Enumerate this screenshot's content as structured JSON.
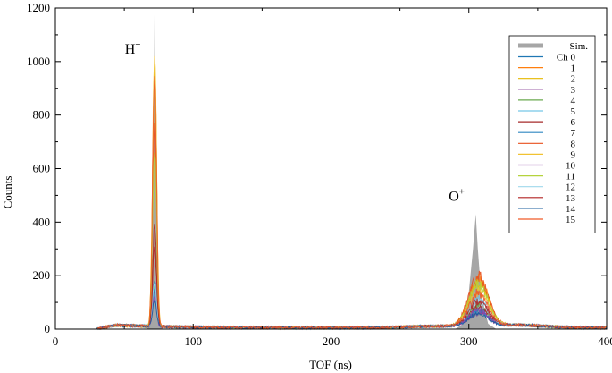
{
  "chart_data": {
    "type": "line",
    "xlabel": "TOF (ns)",
    "ylabel": "Counts",
    "xlim": [
      0,
      400
    ],
    "ylim": [
      0,
      1200
    ],
    "x_ticks": [
      "0",
      "100",
      "200",
      "300",
      "400"
    ],
    "y_ticks": [
      "0",
      "200",
      "400",
      "600",
      "800",
      "1000",
      "1200"
    ],
    "grid": false,
    "legend_position": "top-right",
    "annotations": [
      {
        "label": "H",
        "superscript": "+",
        "x": 71,
        "y": 1030
      },
      {
        "label": "O",
        "superscript": "+",
        "x": 306,
        "y": 480
      }
    ],
    "simulation": {
      "name": "Sim.",
      "color": "#a6a6a6",
      "points": [
        [
          28,
          0
        ],
        [
          60,
          0
        ],
        [
          66,
          0
        ],
        [
          69,
          40
        ],
        [
          70.5,
          300
        ],
        [
          71.5,
          900
        ],
        [
          72,
          1200
        ],
        [
          72.6,
          900
        ],
        [
          73.5,
          350
        ],
        [
          75,
          60
        ],
        [
          77,
          0
        ],
        [
          290,
          0
        ],
        [
          296,
          20
        ],
        [
          300,
          140
        ],
        [
          303,
          300
        ],
        [
          305,
          430
        ],
        [
          306.5,
          300
        ],
        [
          309,
          130
        ],
        [
          314,
          20
        ],
        [
          320,
          0
        ],
        [
          400,
          0
        ]
      ]
    },
    "series": [
      {
        "name": "Ch 0",
        "color": "#1f77b4",
        "h_peak": 170,
        "o_peak": 60
      },
      {
        "name": "1",
        "color": "#ff7f0e",
        "h_peak": 960,
        "o_peak": 175
      },
      {
        "name": "2",
        "color": "#e6b800",
        "h_peak": 980,
        "o_peak": 165
      },
      {
        "name": "3",
        "color": "#7b2d8e",
        "h_peak": 130,
        "o_peak": 50
      },
      {
        "name": "4",
        "color": "#6aa84f",
        "h_peak": 150,
        "o_peak": 75
      },
      {
        "name": "5",
        "color": "#76c7e8",
        "h_peak": 120,
        "o_peak": 100
      },
      {
        "name": "6",
        "color": "#a52a2a",
        "h_peak": 380,
        "o_peak": 70
      },
      {
        "name": "7",
        "color": "#2e86c1",
        "h_peak": 140,
        "o_peak": 55
      },
      {
        "name": "8",
        "color": "#e8501e",
        "h_peak": 760,
        "o_peak": 185
      },
      {
        "name": "9",
        "color": "#f1c232",
        "h_peak": 1010,
        "o_peak": 130
      },
      {
        "name": "10",
        "color": "#8e44ad",
        "h_peak": 110,
        "o_peak": 60
      },
      {
        "name": "11",
        "color": "#b5d33d",
        "h_peak": 650,
        "o_peak": 155
      },
      {
        "name": "12",
        "color": "#9fd8ec",
        "h_peak": 160,
        "o_peak": 90
      },
      {
        "name": "13",
        "color": "#b22222",
        "h_peak": 300,
        "o_peak": 95
      },
      {
        "name": "14",
        "color": "#1a5e9e",
        "h_peak": 100,
        "o_peak": 45
      },
      {
        "name": "15",
        "color": "#f05a28",
        "h_peak": 940,
        "o_peak": 120
      }
    ]
  }
}
